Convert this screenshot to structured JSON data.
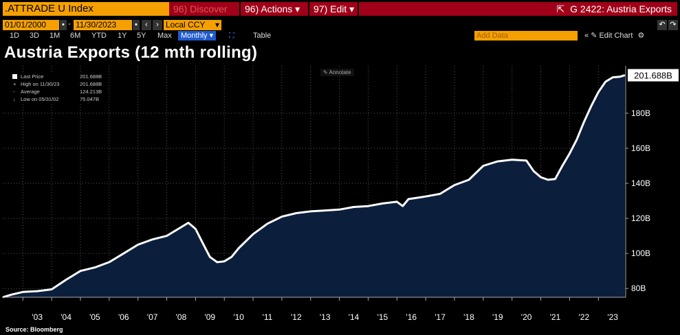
{
  "toolbar": {
    "ticker": ".ATTRADE U Index",
    "discover": "96) Discover",
    "actions": "96) Actions",
    "edit": "97) Edit",
    "graph_title": "G 2422: Austria Exports",
    "start_date": "01/01/2000",
    "end_date": "11/30/2023",
    "currency": "Local CCY",
    "add_data": "Add Data",
    "edit_chart": "Edit Chart",
    "periods": [
      "1D",
      "3D",
      "1M",
      "6M",
      "YTD",
      "1Y",
      "5Y",
      "Max"
    ],
    "frequency": "Monthly",
    "table": "Table"
  },
  "legend": {
    "rows": [
      {
        "label": "Last Price",
        "value": "201.688B"
      },
      {
        "label": "High on 11/30/23",
        "value": "201.688B"
      },
      {
        "label": "Average",
        "value": "124.213B"
      },
      {
        "label": "Low on 05/31/02",
        "value": "75.047B"
      }
    ],
    "annotate": "Annotate"
  },
  "last_value_label": "201.688B",
  "source": "Source: Bloomberg",
  "colors": {
    "accent": "#f5a000",
    "bar": "#a00018",
    "area": "#0b1f3d",
    "line": "#ffffff"
  },
  "chart_data": {
    "type": "area",
    "title": "Austria Exports (12 mth rolling)",
    "xlabel": "",
    "ylabel": "",
    "x_tick_labels": [
      "'03",
      "'04",
      "'05",
      "'06",
      "'07",
      "'08",
      "'09",
      "'10",
      "'11",
      "'12",
      "'13",
      "'14",
      "'15",
      "'16",
      "'17",
      "'18",
      "'19",
      "'20",
      "'21",
      "'22",
      "'23"
    ],
    "y_tick_labels": [
      "80B",
      "100B",
      "120B",
      "140B",
      "160B",
      "180B"
    ],
    "y_ticks": [
      80,
      100,
      120,
      140,
      160,
      180
    ],
    "ylim": [
      75,
      207
    ],
    "xlim": [
      2002.3,
      2023.95
    ],
    "grid": true,
    "series": [
      {
        "points": [
          [
            2002.3,
            75.0
          ],
          [
            2002.6,
            76.5
          ],
          [
            2003.0,
            78.0
          ],
          [
            2003.5,
            78.5
          ],
          [
            2004.0,
            79.5
          ],
          [
            2004.5,
            85.0
          ],
          [
            2005.0,
            90.0
          ],
          [
            2005.5,
            92.0
          ],
          [
            2006.0,
            95.0
          ],
          [
            2006.5,
            100.0
          ],
          [
            2007.0,
            105.0
          ],
          [
            2007.5,
            108.0
          ],
          [
            2008.0,
            110.0
          ],
          [
            2008.5,
            115.0
          ],
          [
            2008.75,
            117.5
          ],
          [
            2009.0,
            114.0
          ],
          [
            2009.25,
            106.0
          ],
          [
            2009.5,
            98.0
          ],
          [
            2009.75,
            95.0
          ],
          [
            2010.0,
            95.5
          ],
          [
            2010.25,
            98.0
          ],
          [
            2010.5,
            103.0
          ],
          [
            2011.0,
            111.0
          ],
          [
            2011.5,
            117.0
          ],
          [
            2012.0,
            121.0
          ],
          [
            2012.5,
            123.0
          ],
          [
            2013.0,
            124.0
          ],
          [
            2013.5,
            124.5
          ],
          [
            2014.0,
            125.0
          ],
          [
            2014.5,
            126.5
          ],
          [
            2015.0,
            127.0
          ],
          [
            2015.5,
            128.5
          ],
          [
            2016.0,
            129.5
          ],
          [
            2016.2,
            127.0
          ],
          [
            2016.4,
            131.0
          ],
          [
            2016.8,
            132.0
          ],
          [
            2017.0,
            132.5
          ],
          [
            2017.5,
            134.0
          ],
          [
            2017.8,
            137.0
          ],
          [
            2018.0,
            139.0
          ],
          [
            2018.5,
            142.0
          ],
          [
            2019.0,
            150.0
          ],
          [
            2019.5,
            152.5
          ],
          [
            2020.0,
            153.5
          ],
          [
            2020.5,
            153.0
          ],
          [
            2020.75,
            147.0
          ],
          [
            2021.0,
            143.5
          ],
          [
            2021.25,
            142.0
          ],
          [
            2021.5,
            142.5
          ],
          [
            2021.75,
            150.0
          ],
          [
            2022.0,
            157.0
          ],
          [
            2022.25,
            165.0
          ],
          [
            2022.5,
            175.0
          ],
          [
            2022.75,
            184.0
          ],
          [
            2023.0,
            192.0
          ],
          [
            2023.25,
            198.0
          ],
          [
            2023.5,
            200.5
          ],
          [
            2023.75,
            200.8
          ],
          [
            2023.92,
            201.688
          ]
        ]
      }
    ]
  }
}
